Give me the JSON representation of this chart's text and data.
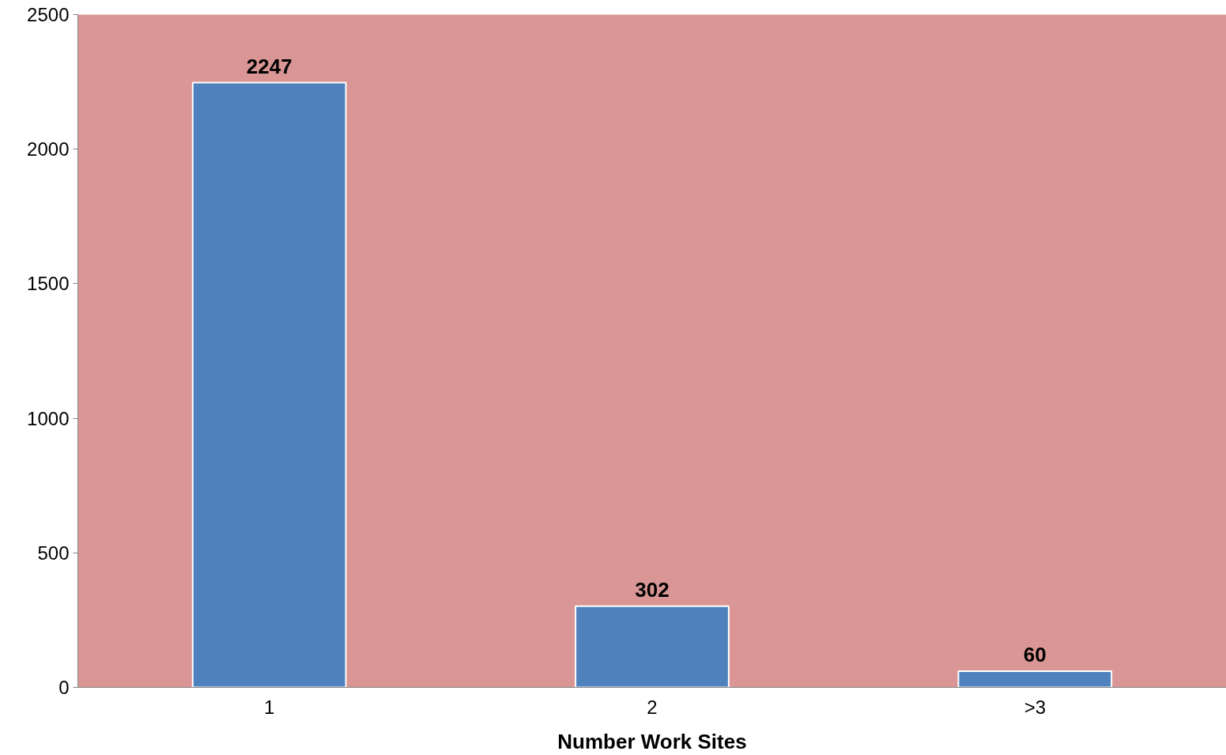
{
  "chart_data": {
    "type": "bar",
    "xlabel": "Number Work Sites",
    "categories": [
      "1",
      "2",
      ">3"
    ],
    "values": [
      2247,
      302,
      60
    ],
    "color": "#4f81bd",
    "ylim": [
      0,
      2500
    ],
    "yticks": [
      0,
      500,
      1000,
      1500,
      2000,
      2500
    ],
    "grid": false,
    "data_labels": true
  }
}
